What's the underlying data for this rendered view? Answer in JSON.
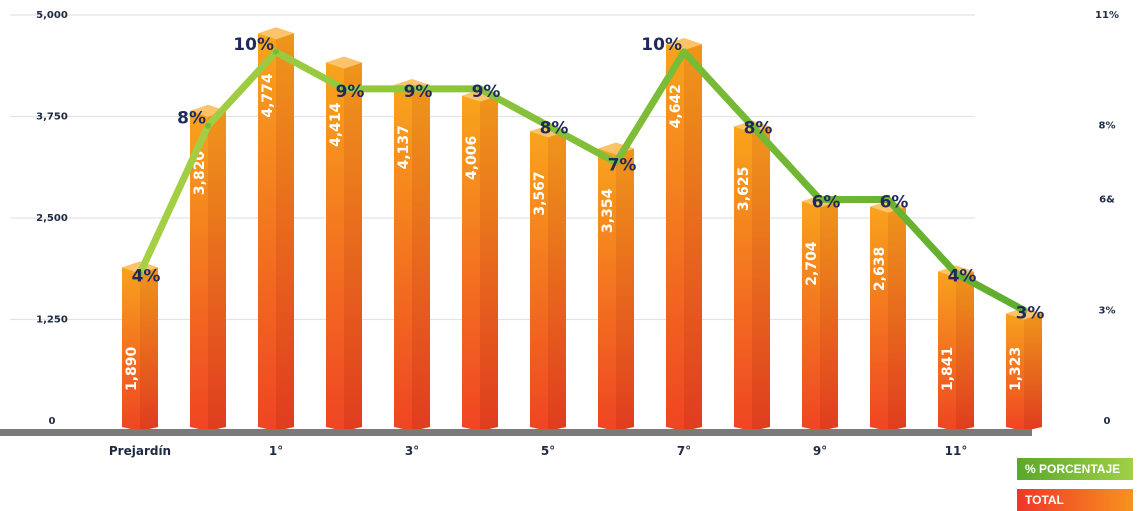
{
  "chart_data": {
    "type": "bar",
    "categories": [
      "Prejardín",
      "",
      "1°",
      "",
      "3°",
      "",
      "5°",
      "",
      "7°",
      "",
      "9°",
      "",
      "11°",
      ""
    ],
    "series": [
      {
        "name": "TOTAL",
        "type": "bar",
        "axis": "left",
        "values": [
          1890,
          3820,
          4774,
          4414,
          4137,
          4006,
          3567,
          3354,
          4642,
          3625,
          2704,
          2638,
          1841,
          1323
        ],
        "labels": [
          "1,890",
          "3,820",
          "4,774",
          "4,414",
          "4,137",
          "4,006",
          "3,567",
          "3,354",
          "4,642",
          "3,625",
          "2,704",
          "2,638",
          "1,841",
          "1,323"
        ]
      },
      {
        "name": "% PORCENTAJE",
        "type": "line",
        "axis": "right",
        "values": [
          4,
          8,
          10,
          9,
          9,
          9,
          8,
          7,
          10,
          8,
          6,
          6,
          4,
          3
        ],
        "labels": [
          "4%",
          "8%",
          "10%",
          "9%",
          "9%",
          "9%",
          "8%",
          "7%",
          "10%",
          "8%",
          "6%",
          "6%",
          "4%",
          "3%"
        ]
      }
    ],
    "y_left": {
      "ylim": [
        0,
        5000
      ],
      "ticks": [
        0,
        1250,
        2500,
        3750,
        5000
      ],
      "tick_labels": [
        "0",
        "1,250",
        "2,500",
        "3,750",
        "5,000"
      ]
    },
    "y_right": {
      "ylim": [
        0,
        11
      ],
      "ticks": [
        0,
        3,
        6,
        8,
        11
      ],
      "tick_labels": [
        "0",
        "3%",
        "6&",
        "8%",
        "11%"
      ]
    },
    "grid": true,
    "legend_position": "bottom-right",
    "colors": {
      "bar_top": "#f7a21b",
      "bar_bottom": "#ef4423",
      "line": "#8cc63f",
      "axis": "#7a7a7a",
      "pct_text": "#1f2a5a"
    }
  },
  "legend": {
    "percentage": "% PORCENTAJE",
    "total": "TOTAL"
  }
}
